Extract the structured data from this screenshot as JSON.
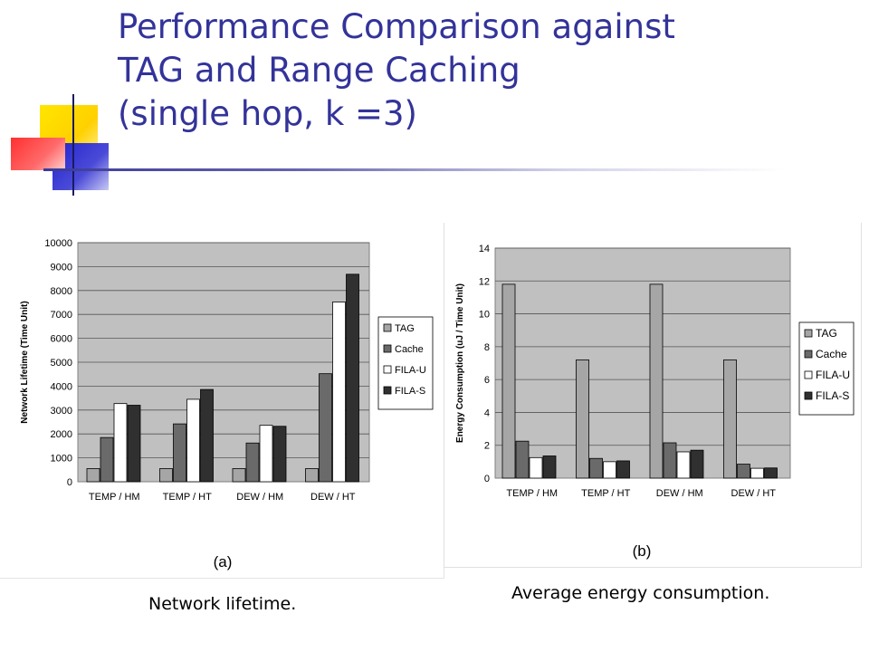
{
  "slide": {
    "title_lines": [
      "Performance Comparison against",
      "TAG and Range Caching",
      "(single hop, k =3)"
    ],
    "caption_a": "Network lifetime.",
    "caption_b": "Average energy consumption.",
    "colors": {
      "title": "#33339a",
      "plot_bg": "#c0c0c0",
      "tag": "#a6a6a6",
      "cache": "#6a6a6a",
      "fila_u": "#ffffff",
      "fila_s": "#303030"
    }
  },
  "chart_data": [
    {
      "type": "bar",
      "title": "",
      "panel_label": "(a)",
      "ylabel": "Network Lifetime (Time Unit)",
      "xlabel": "",
      "categories": [
        "TEMP / HM",
        "TEMP / HT",
        "DEW / HM",
        "DEW / HT"
      ],
      "series": [
        {
          "name": "TAG",
          "values": [
            550,
            550,
            550,
            550
          ]
        },
        {
          "name": "Cache",
          "values": [
            1850,
            2420,
            1620,
            4520
          ]
        },
        {
          "name": "FILA-U",
          "values": [
            3270,
            3450,
            2360,
            7520
          ]
        },
        {
          "name": "FILA-S",
          "values": [
            3200,
            3860,
            2320,
            8680
          ]
        }
      ],
      "ylim": [
        0,
        10000
      ],
      "yticks": [
        "0",
        "1000",
        "2000",
        "3000",
        "4000",
        "5000",
        "6000",
        "7000",
        "8000",
        "9000",
        "10000"
      ],
      "grid": true,
      "legend": "right"
    },
    {
      "type": "bar",
      "title": "",
      "panel_label": "(b)",
      "ylabel": "Energy Consumption (uJ / Time Unit)",
      "xlabel": "",
      "categories": [
        "TEMP / HM",
        "TEMP / HT",
        "DEW / HM",
        "DEW / HT"
      ],
      "series": [
        {
          "name": "TAG",
          "values": [
            11.8,
            7.2,
            11.8,
            7.2
          ]
        },
        {
          "name": "Cache",
          "values": [
            2.25,
            1.2,
            2.15,
            0.85
          ]
        },
        {
          "name": "FILA-U",
          "values": [
            1.25,
            1.0,
            1.6,
            0.6
          ]
        },
        {
          "name": "FILA-S",
          "values": [
            1.35,
            1.05,
            1.7,
            0.62
          ]
        }
      ],
      "ylim": [
        0,
        14
      ],
      "yticks": [
        "0",
        "2",
        "4",
        "6",
        "8",
        "10",
        "12",
        "14"
      ],
      "grid": true,
      "legend": "right"
    }
  ]
}
